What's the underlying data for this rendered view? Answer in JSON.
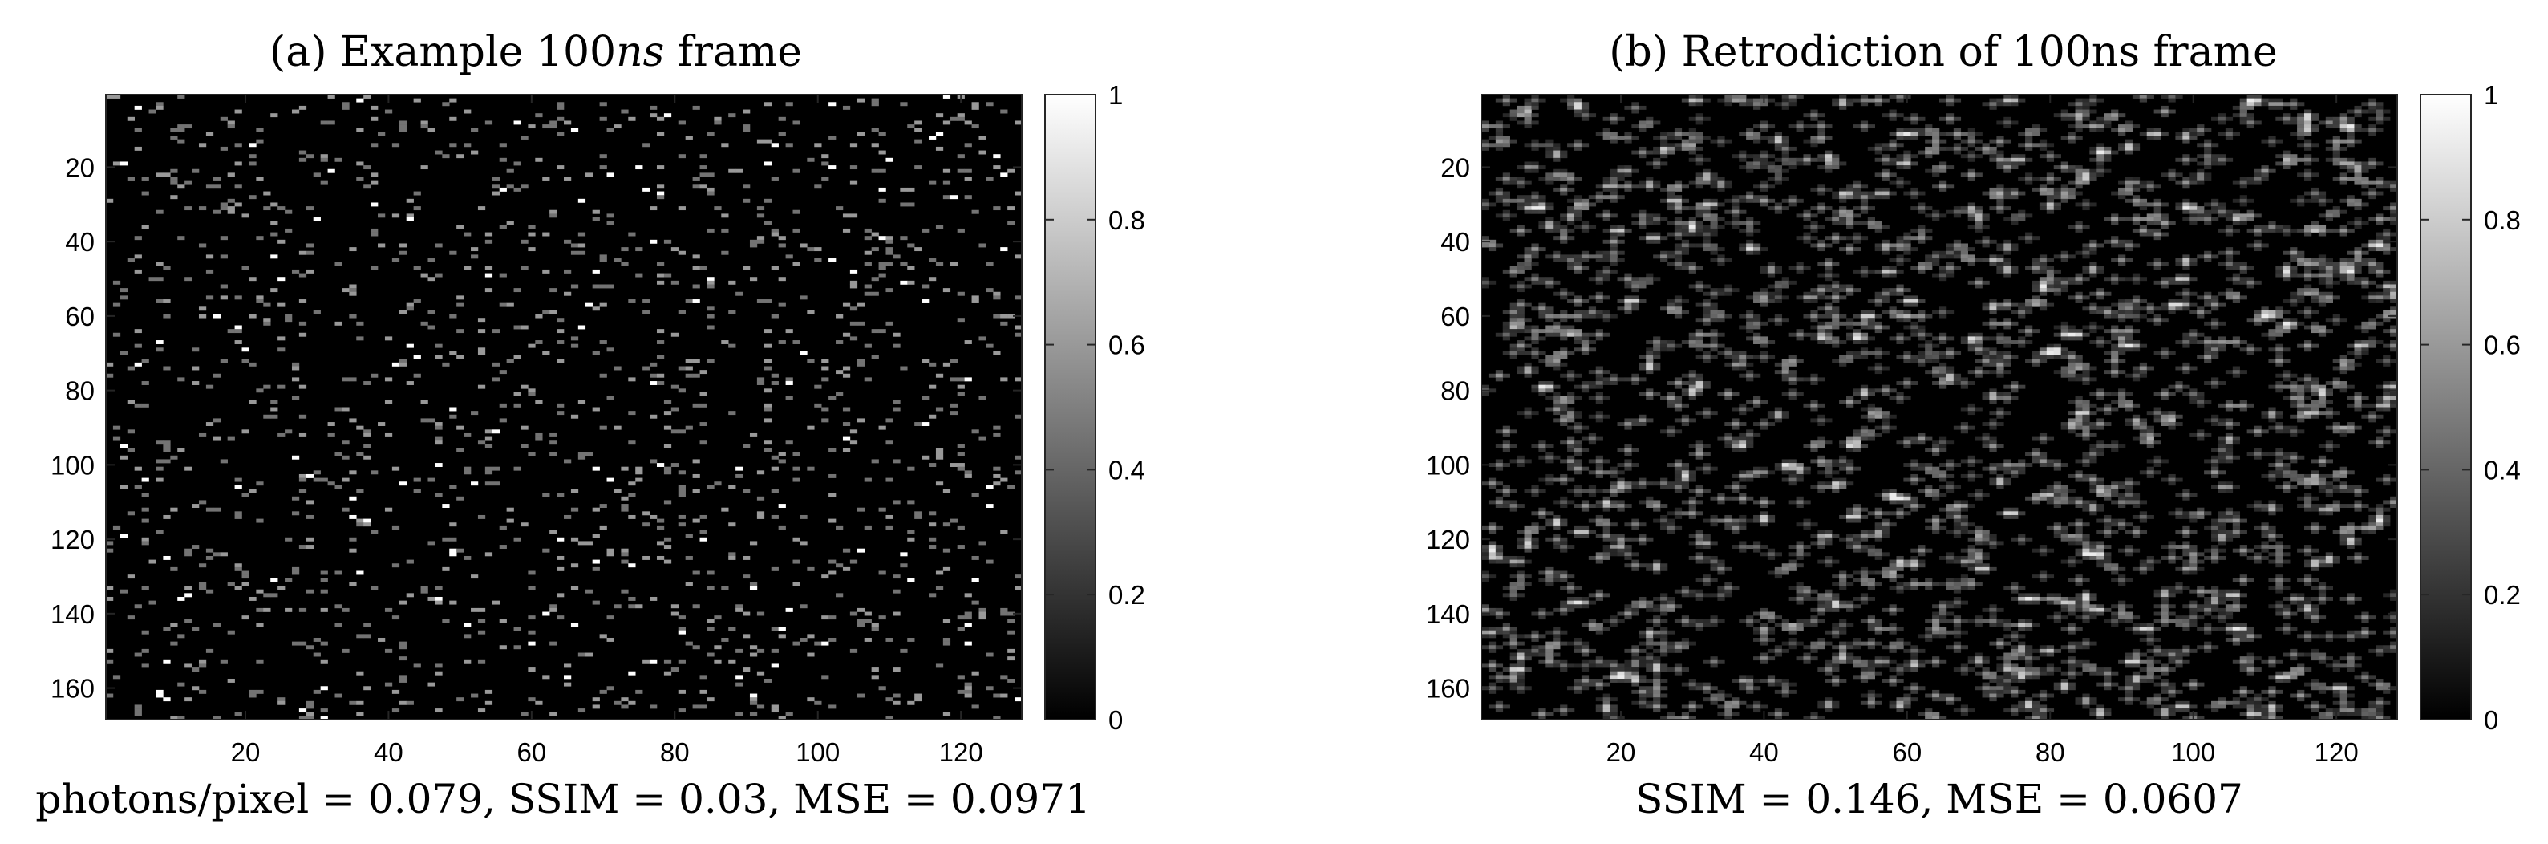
{
  "chart_data": [
    {
      "type": "heatmap",
      "title_prefix": "(a) Example 100",
      "title_italic": "ns",
      "title_suffix": " frame",
      "colormap": "grayscale",
      "background_color": "#000000",
      "x_ticks": [
        "20",
        "40",
        "60",
        "80",
        "100",
        "120"
      ],
      "y_ticks": [
        "20",
        "40",
        "60",
        "80",
        "100",
        "120",
        "140",
        "160"
      ],
      "xlim": [
        0.5,
        128.5
      ],
      "ylim": [
        0.5,
        168.5
      ],
      "y_reversed": true,
      "colorbar_ticks": [
        "0",
        "0.2",
        "0.4",
        "0.6",
        "0.8",
        "1"
      ],
      "colorbar_range": [
        0,
        1
      ],
      "pattern": "sparse",
      "caption": "photons/pixel = 0.079, SSIM = 0.03, MSE = 0.0971"
    },
    {
      "type": "heatmap",
      "title": "(b) Retrodiction of 100ns frame",
      "colormap": "grayscale",
      "background_color": "#000000",
      "x_ticks": [
        "20",
        "40",
        "60",
        "80",
        "100",
        "120"
      ],
      "y_ticks": [
        "20",
        "40",
        "60",
        "80",
        "100",
        "120",
        "140",
        "160"
      ],
      "xlim": [
        0.5,
        128.5
      ],
      "ylim": [
        0.5,
        168.5
      ],
      "y_reversed": true,
      "colorbar_ticks": [
        "0",
        "0.2",
        "0.4",
        "0.6",
        "0.8",
        "1"
      ],
      "colorbar_range": [
        0,
        1
      ],
      "pattern": "smoothed",
      "caption": "SSIM = 0.146, MSE = 0.0607"
    }
  ]
}
